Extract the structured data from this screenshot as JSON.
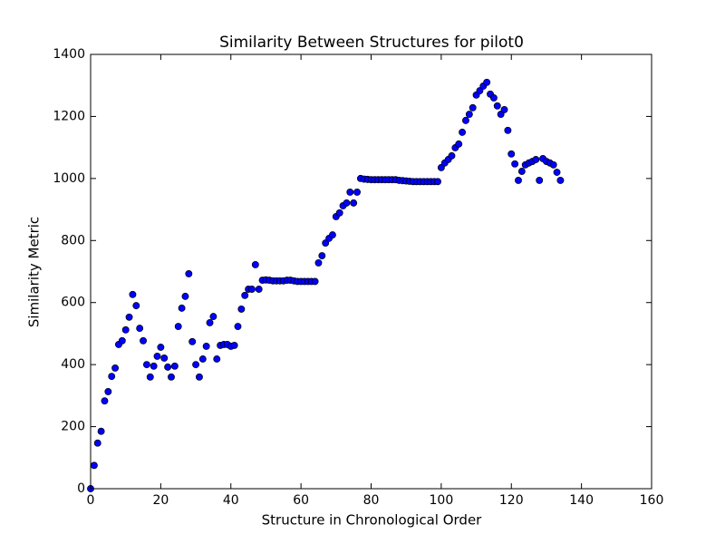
{
  "chart_data": {
    "type": "scatter",
    "title": "Similarity Between Structures for pilot0",
    "x_label": "Structure in Chronological Order",
    "y_label": "Similarity Metric",
    "color": "#0000ff",
    "x": [
      0,
      1,
      2,
      3,
      4,
      5,
      6,
      7,
      8,
      9,
      10,
      11,
      12,
      13,
      14,
      15,
      16,
      17,
      18,
      19,
      20,
      21,
      22,
      23,
      24,
      25,
      26,
      27,
      28,
      29,
      30,
      31,
      32,
      33,
      34,
      35,
      36,
      37,
      38,
      39,
      40,
      41,
      42,
      43,
      44,
      45,
      46,
      47,
      48,
      49,
      50,
      51,
      52,
      53,
      54,
      55,
      56,
      57,
      58,
      59,
      60,
      61,
      62,
      63,
      64,
      65,
      66,
      67,
      68,
      69,
      70,
      71,
      72,
      73,
      74,
      75,
      76,
      77,
      78,
      79,
      80,
      81,
      82,
      83,
      84,
      85,
      86,
      87,
      88,
      89,
      90,
      91,
      92,
      93,
      94,
      95,
      96,
      97,
      98,
      99,
      100,
      101,
      102,
      103,
      104,
      105,
      106,
      107,
      108,
      109,
      110,
      111,
      112,
      113,
      114,
      115,
      116,
      117,
      118,
      119,
      120,
      121,
      122,
      123,
      124,
      125,
      126,
      127,
      128,
      129,
      130,
      131,
      132,
      133,
      134
    ],
    "values": [
      0,
      75,
      147,
      185,
      283,
      313,
      362,
      389,
      465,
      477,
      512,
      553,
      626,
      590,
      517,
      477,
      400,
      360,
      395,
      427,
      456,
      421,
      392,
      360,
      395,
      523,
      582,
      620,
      693,
      474,
      400,
      360,
      418,
      459,
      535,
      555,
      418,
      462,
      465,
      465,
      459,
      462,
      523,
      579,
      623,
      643,
      643,
      722,
      643,
      672,
      673,
      672,
      670,
      670,
      670,
      670,
      672,
      672,
      670,
      668,
      668,
      668,
      668,
      668,
      668,
      728,
      751,
      792,
      807,
      818,
      877,
      889,
      912,
      921,
      956,
      921,
      956,
      1000,
      998,
      997,
      996,
      996,
      996,
      996,
      996,
      996,
      996,
      996,
      994,
      993,
      992,
      991,
      990,
      990,
      990,
      990,
      990,
      990,
      990,
      990,
      1035,
      1050,
      1061,
      1073,
      1099,
      1111,
      1149,
      1187,
      1207,
      1228,
      1269,
      1283,
      1298,
      1310,
      1272,
      1260,
      1234,
      1207,
      1222,
      1155,
      1079,
      1047,
      994,
      1023,
      1044,
      1050,
      1055,
      1061,
      994,
      1064,
      1055,
      1050,
      1044,
      1020,
      994
    ],
    "xlim": [
      0,
      160
    ],
    "xticks": [
      0,
      20,
      40,
      60,
      80,
      100,
      120,
      140,
      160
    ],
    "ylim": [
      0,
      1400
    ],
    "yticks": [
      0,
      200,
      400,
      600,
      800,
      1000,
      1200,
      1400
    ],
    "grid": false
  }
}
